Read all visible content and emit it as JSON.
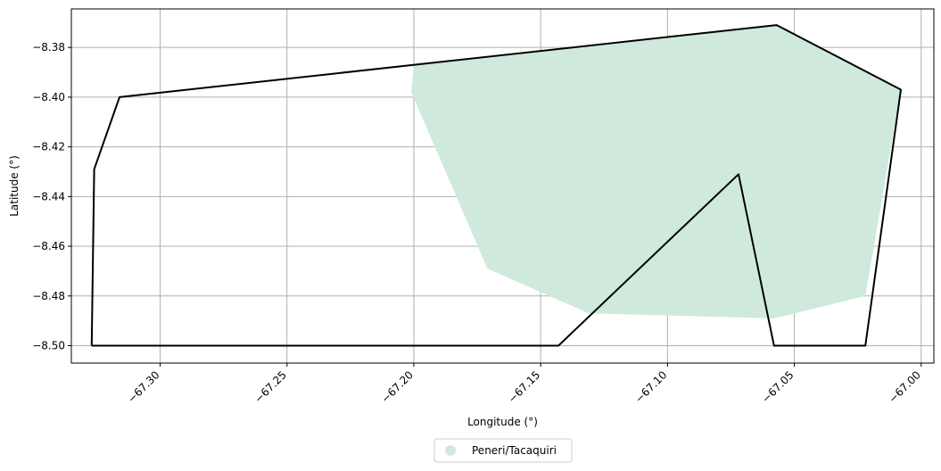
{
  "chart_data": {
    "type": "map",
    "xlabel": "Longitude (°)",
    "ylabel": "Latitude (°)",
    "xlim": [
      -67.335,
      -66.995
    ],
    "ylim": [
      -8.507,
      -8.3645
    ],
    "x_ticks": [
      -67.3,
      -67.25,
      -67.2,
      -67.15,
      -67.1,
      -67.05,
      -67.0
    ],
    "x_tick_labels": [
      "−67.30",
      "−67.25",
      "−67.20",
      "−67.15",
      "−67.10",
      "−67.05",
      "−67.00"
    ],
    "y_ticks": [
      -8.38,
      -8.4,
      -8.42,
      -8.44,
      -8.46,
      -8.48,
      -8.5
    ],
    "y_tick_labels": [
      "−8.38",
      "−8.40",
      "−8.42",
      "−8.44",
      "−8.46",
      "−8.48",
      "−8.50"
    ],
    "grid": true,
    "layers": [
      {
        "name": "Peneri/Tacaquiri",
        "kind": "filled-polygon",
        "color": "#cfeadc",
        "coordinates": [
          [
            -67.2,
            -8.387
          ],
          [
            -67.057,
            -8.371
          ],
          [
            -67.008,
            -8.397
          ],
          [
            -67.022,
            -8.48
          ],
          [
            -67.058,
            -8.489
          ],
          [
            -67.131,
            -8.487
          ],
          [
            -67.171,
            -8.469
          ],
          [
            -67.201,
            -8.398
          ]
        ]
      },
      {
        "name": "",
        "kind": "outline",
        "color": "#000000",
        "coordinates": [
          [
            -67.327,
            -8.5
          ],
          [
            -67.326,
            -8.429
          ],
          [
            -67.316,
            -8.4
          ],
          [
            -67.057,
            -8.371
          ],
          [
            -67.008,
            -8.397
          ],
          [
            -67.022,
            -8.5
          ],
          [
            -67.058,
            -8.5
          ],
          [
            -67.072,
            -8.431
          ],
          [
            -67.143,
            -8.5
          ],
          [
            -67.327,
            -8.5
          ]
        ]
      }
    ],
    "legend": {
      "placement": "bottom-center",
      "entries": [
        {
          "label": "Peneri/Tacaquiri",
          "color": "#cfeadc"
        }
      ]
    }
  }
}
